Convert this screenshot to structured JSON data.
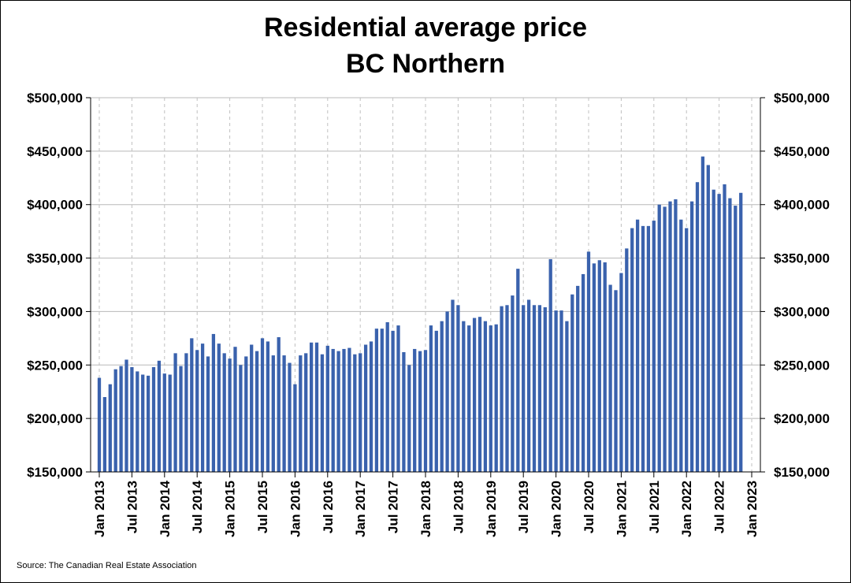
{
  "chart_data": {
    "type": "bar",
    "title": [
      "Residential average price",
      "BC Northern"
    ],
    "xlabel": "",
    "ylabel": "",
    "ylim": [
      150000,
      500000
    ],
    "yticks": [
      150000,
      200000,
      250000,
      300000,
      350000,
      400000,
      450000,
      500000
    ],
    "ytick_labels": [
      "$150,000",
      "$200,000",
      "$250,000",
      "$300,000",
      "$350,000",
      "$400,000",
      "$450,000",
      "$500,000"
    ],
    "xticks": [
      "Jan 2013",
      "Jul 2013",
      "Jan 2014",
      "Jul 2014",
      "Jan 2015",
      "Jul 2015",
      "Jan 2016",
      "Jul 2016",
      "Jan 2017",
      "Jul 2017",
      "Jan 2018",
      "Jul 2018",
      "Jan 2019",
      "Jul 2019",
      "Jan 2020",
      "Jul 2020",
      "Jan 2021",
      "Jul 2021",
      "Jan 2022",
      "Jul 2022",
      "Jan 2023"
    ],
    "x_start": "Jan 2013",
    "x_end": "Jan 2023",
    "grid": true,
    "bar_color": "#3a62ad",
    "series": [
      {
        "name": "Residential average price",
        "values": [
          238000,
          220000,
          232000,
          246000,
          249000,
          255000,
          248000,
          244000,
          241000,
          240000,
          248000,
          254000,
          242000,
          241000,
          261000,
          249000,
          261000,
          275000,
          264000,
          270000,
          258000,
          279000,
          270000,
          261000,
          256000,
          267000,
          250000,
          258000,
          269000,
          263000,
          275000,
          272000,
          259000,
          276000,
          259000,
          252000,
          232000,
          259000,
          261000,
          271000,
          271000,
          260000,
          268000,
          265000,
          263000,
          265000,
          266000,
          260000,
          261000,
          269000,
          272000,
          284000,
          284000,
          290000,
          282000,
          287000,
          262000,
          250000,
          265000,
          263000,
          264000,
          287000,
          282000,
          291000,
          300000,
          311000,
          306000,
          291000,
          287000,
          294000,
          295000,
          291000,
          287000,
          288000,
          305000,
          306000,
          315000,
          340000,
          306000,
          311000,
          306000,
          306000,
          304000,
          349000,
          301000,
          301000,
          291000,
          316000,
          324000,
          335000,
          356000,
          345000,
          348000,
          346000,
          325000,
          320000,
          336000,
          359000,
          378000,
          386000,
          380000,
          380000,
          385000,
          400000,
          398000,
          403000,
          405000,
          386000,
          378000,
          403000,
          421000,
          445000,
          437000,
          414000,
          410000,
          419000,
          406000,
          399000,
          411000
        ]
      }
    ]
  },
  "source": "Source: The Canadian Real Estate Association"
}
